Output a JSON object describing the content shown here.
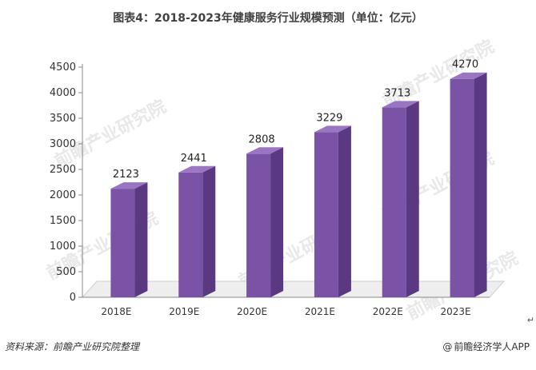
{
  "title": "图表4：2018-2023年健康服务行业规模预测（单位：亿元）",
  "source": "资料来源：前瞻产业研究院整理",
  "credit": {
    "icon": "at-icon",
    "symbol": "@",
    "text": "前瞻经济学人APP"
  },
  "return_mark": "↵",
  "watermark": "前瞻产业研究院",
  "colors": {
    "bar_front": "#7a52a6",
    "bar_side": "#5a3882",
    "bar_top": "#9a76c2",
    "floor": "#eeeeee",
    "axis": "#888888"
  },
  "chart_data": {
    "type": "bar",
    "categories": [
      "2018E",
      "2019E",
      "2020E",
      "2021E",
      "2022E",
      "2023E"
    ],
    "values": [
      2123,
      2441,
      2808,
      3229,
      3713,
      4270
    ],
    "title": "图表4：2018-2023年健康服务行业规模预测（单位：亿元）",
    "xlabel": "",
    "ylabel": "",
    "ylim": [
      0,
      4500
    ],
    "yticks": [
      0,
      500,
      1000,
      1500,
      2000,
      2500,
      3000,
      3500,
      4000,
      4500
    ],
    "grid": false,
    "legend": "none",
    "style": "3d-bar"
  }
}
